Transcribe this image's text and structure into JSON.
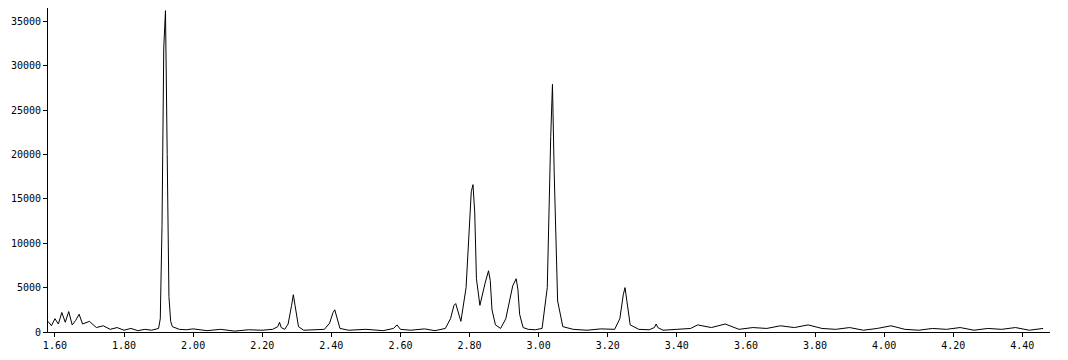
{
  "chart_data": {
    "type": "line",
    "color": "#000000",
    "grid": false,
    "x": [
      1.58,
      1.59,
      1.6,
      1.61,
      1.62,
      1.63,
      1.64,
      1.65,
      1.66,
      1.67,
      1.68,
      1.7,
      1.72,
      1.74,
      1.76,
      1.78,
      1.8,
      1.82,
      1.84,
      1.86,
      1.88,
      1.9,
      1.905,
      1.91,
      1.915,
      1.92,
      1.925,
      1.93,
      1.935,
      1.94,
      1.96,
      1.98,
      2.0,
      2.04,
      2.08,
      2.12,
      2.16,
      2.2,
      2.23,
      2.245,
      2.25,
      2.255,
      2.265,
      2.275,
      2.285,
      2.29,
      2.295,
      2.305,
      2.32,
      2.35,
      2.38,
      2.395,
      2.405,
      2.41,
      2.415,
      2.425,
      2.45,
      2.5,
      2.55,
      2.58,
      2.59,
      2.6,
      2.63,
      2.67,
      2.7,
      2.73,
      2.745,
      2.755,
      2.76,
      2.765,
      2.775,
      2.79,
      2.8,
      2.805,
      2.81,
      2.815,
      2.82,
      2.83,
      2.845,
      2.855,
      2.86,
      2.865,
      2.875,
      2.89,
      2.905,
      2.925,
      2.935,
      2.94,
      2.945,
      2.955,
      2.97,
      2.99,
      3.01,
      3.025,
      3.035,
      3.04,
      3.045,
      3.055,
      3.07,
      3.1,
      3.14,
      3.18,
      3.22,
      3.235,
      3.245,
      3.25,
      3.255,
      3.265,
      3.29,
      3.32,
      3.335,
      3.34,
      3.345,
      3.36,
      3.4,
      3.44,
      3.46,
      3.5,
      3.54,
      3.58,
      3.62,
      3.66,
      3.7,
      3.74,
      3.78,
      3.82,
      3.86,
      3.9,
      3.94,
      3.98,
      4.02,
      4.06,
      4.1,
      4.14,
      4.18,
      4.22,
      4.26,
      4.3,
      4.34,
      4.38,
      4.42,
      4.46
    ],
    "values": [
      1200,
      700,
      1500,
      900,
      2200,
      1100,
      2300,
      800,
      1300,
      2000,
      900,
      1200,
      500,
      700,
      300,
      500,
      200,
      400,
      150,
      300,
      200,
      400,
      1500,
      12000,
      32000,
      36200,
      20000,
      4000,
      1200,
      600,
      300,
      250,
      350,
      150,
      300,
      100,
      250,
      200,
      300,
      600,
      1100,
      500,
      300,
      900,
      3000,
      4200,
      3000,
      600,
      200,
      250,
      300,
      1000,
      2200,
      2500,
      1800,
      400,
      200,
      300,
      150,
      400,
      800,
      300,
      200,
      350,
      150,
      400,
      1500,
      3000,
      3200,
      2500,
      1200,
      5000,
      13000,
      15800,
      16600,
      13500,
      6000,
      3000,
      5500,
      6900,
      5800,
      2500,
      800,
      400,
      1500,
      5200,
      6000,
      4800,
      2000,
      500,
      300,
      250,
      400,
      5000,
      22000,
      27900,
      18000,
      3500,
      600,
      300,
      200,
      350,
      300,
      1500,
      4200,
      5000,
      3600,
      800,
      300,
      250,
      500,
      900,
      500,
      200,
      300,
      400,
      800,
      500,
      900,
      300,
      500,
      400,
      700,
      500,
      800,
      400,
      300,
      500,
      200,
      400,
      700,
      300,
      200,
      400,
      300,
      500,
      200,
      400,
      300,
      500,
      200,
      400
    ],
    "xlim": [
      1.58,
      4.48
    ],
    "xticks": [
      {
        "value": 1.6,
        "label": "1.60"
      },
      {
        "value": 1.8,
        "label": "1.80"
      },
      {
        "value": 2.0,
        "label": "2.00"
      },
      {
        "value": 2.2,
        "label": "2.20"
      },
      {
        "value": 2.4,
        "label": "2.40"
      },
      {
        "value": 2.6,
        "label": "2.60"
      },
      {
        "value": 2.8,
        "label": "2.80"
      },
      {
        "value": 3.0,
        "label": "3.00"
      },
      {
        "value": 3.2,
        "label": "3.20"
      },
      {
        "value": 3.4,
        "label": "3.40"
      },
      {
        "value": 3.6,
        "label": "3.60"
      },
      {
        "value": 3.8,
        "label": "3.80"
      },
      {
        "value": 4.0,
        "label": "4.00"
      },
      {
        "value": 4.2,
        "label": "4.20"
      },
      {
        "value": 4.4,
        "label": "4.40"
      }
    ],
    "ylim": [
      0,
      36500
    ],
    "yticks": [
      0,
      5000,
      10000,
      15000,
      20000,
      25000,
      30000,
      35000
    ]
  }
}
